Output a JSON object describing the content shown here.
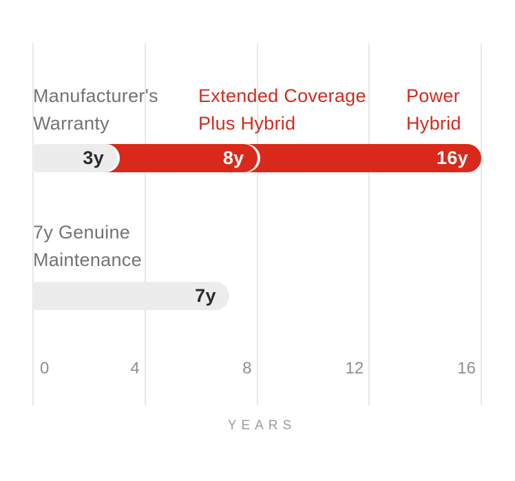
{
  "chart_data": {
    "type": "bar",
    "orientation": "horizontal",
    "xlabel": "YEARS",
    "xlim": [
      0,
      16
    ],
    "x_ticks": [
      0,
      4,
      8,
      12,
      16
    ],
    "grid": true,
    "legend_position": "none",
    "rows": [
      {
        "name": "warranty-coverage",
        "header_labels": [
          {
            "line1": "Manufacturer's",
            "line2": "Warranty",
            "style": "gray"
          },
          {
            "line1": "Extended Coverage",
            "line2": "Plus Hybrid",
            "style": "red"
          },
          {
            "line1": "Power",
            "line2": "Hybrid",
            "style": "red"
          }
        ],
        "segments": [
          {
            "label": "Manufacturer's Warranty",
            "start_year": 0,
            "end_year": 3,
            "value_label": "3y",
            "fill": "#ececec",
            "text_color": "#2b2b2b"
          },
          {
            "label": "Extended Coverage Plus Hybrid",
            "start_year": 3,
            "end_year": 8,
            "value_label": "8y",
            "fill": "#d9291a",
            "text_color": "#ffffff"
          },
          {
            "label": "Power Hybrid",
            "start_year": 8,
            "end_year": 16,
            "value_label": "16y",
            "fill": "#d9291a",
            "text_color": "#ffffff"
          }
        ]
      },
      {
        "name": "genuine-maintenance",
        "header_labels": [
          {
            "line1": "7y Genuine",
            "line2": "Maintenance",
            "style": "gray"
          }
        ],
        "segments": [
          {
            "label": "Genuine Maintenance",
            "start_year": 0,
            "end_year": 7,
            "value_label": "7y",
            "fill": "#ececec",
            "text_color": "#2b2b2b"
          }
        ]
      }
    ],
    "colors": {
      "accent_red_bar": "#d9291a",
      "accent_red_text": "#d32a1c",
      "bar_gray": "#ececec",
      "grid_gray": "#e7e7e7",
      "label_gray": "#737373",
      "tick_gray": "#8e8e8e",
      "axis_title_gray": "#9a9a9a",
      "bar_text_dark": "#2b2b2b",
      "bar_text_light": "#ffffff"
    }
  }
}
